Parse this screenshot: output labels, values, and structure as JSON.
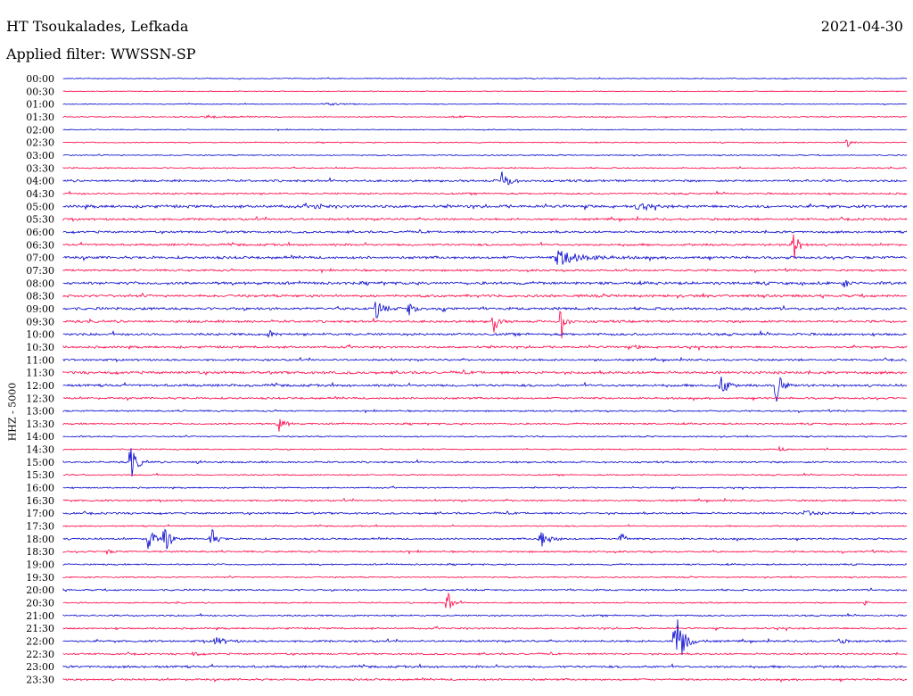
{
  "header": {
    "station": "HT Tsoukalades, Lefkada",
    "date": "2021-04-30",
    "filter": "Applied filter: WWSSN-SP"
  },
  "chart_data": {
    "type": "line",
    "title": "HT Tsoukalades, Lefkada",
    "ylabel": "HHZ - 5000",
    "colors": [
      "#0000cc",
      "#ff0044"
    ],
    "rows": [
      "00:00",
      "00:30",
      "01:00",
      "01:30",
      "02:00",
      "02:30",
      "03:00",
      "03:30",
      "04:00",
      "04:30",
      "05:00",
      "05:30",
      "06:00",
      "06:30",
      "07:00",
      "07:30",
      "08:00",
      "08:30",
      "09:00",
      "09:30",
      "10:00",
      "10:30",
      "11:00",
      "11:30",
      "12:00",
      "12:30",
      "13:00",
      "13:30",
      "14:00",
      "14:30",
      "15:00",
      "15:30",
      "16:00",
      "16:30",
      "17:00",
      "17:30",
      "18:00",
      "18:30",
      "19:00",
      "19:30",
      "20:00",
      "20:30",
      "21:00",
      "21:30",
      "22:00",
      "22:30",
      "23:00",
      "23:30"
    ],
    "noise": [
      0.4,
      0.4,
      0.4,
      0.5,
      0.4,
      0.5,
      0.5,
      0.6,
      1.0,
      0.8,
      1.3,
      1.0,
      1.0,
      1.0,
      1.2,
      0.9,
      1.3,
      1.2,
      1.2,
      1.1,
      1.1,
      1.0,
      0.9,
      1.2,
      1.1,
      0.9,
      0.7,
      0.8,
      0.6,
      0.6,
      0.8,
      0.6,
      0.6,
      0.8,
      0.9,
      0.6,
      0.8,
      0.8,
      0.7,
      0.6,
      0.8,
      0.6,
      0.7,
      0.8,
      0.9,
      0.8,
      1.0,
      0.9
    ],
    "events": [
      {
        "row": 2,
        "x": 0.31,
        "amp": 1.5,
        "dur": 0.02
      },
      {
        "row": 3,
        "x": 0.17,
        "amp": 1.5,
        "dur": 0.02
      },
      {
        "row": 3,
        "x": 0.46,
        "amp": 1.2,
        "dur": 0.02
      },
      {
        "row": 5,
        "x": 0.93,
        "amp": 5,
        "dur": 0.004
      },
      {
        "row": 8,
        "x": 0.52,
        "amp": 16,
        "dur": 0.006
      },
      {
        "row": 10,
        "x": 0.3,
        "amp": 5,
        "dur": 0.004
      },
      {
        "row": 10,
        "x": 0.68,
        "amp": 4,
        "dur": 0.01
      },
      {
        "row": 13,
        "x": 0.865,
        "amp": 22,
        "dur": 0.005
      },
      {
        "row": 14,
        "x": 0.585,
        "amp": 9,
        "dur": 0.025
      },
      {
        "row": 16,
        "x": 0.925,
        "amp": 6,
        "dur": 0.004
      },
      {
        "row": 18,
        "x": 0.37,
        "amp": 14,
        "dur": 0.006
      },
      {
        "row": 18,
        "x": 0.41,
        "amp": 9,
        "dur": 0.005
      },
      {
        "row": 18,
        "x": 0.45,
        "amp": 6,
        "dur": 0.003
      },
      {
        "row": 19,
        "x": 0.51,
        "amp": 16,
        "dur": 0.004
      },
      {
        "row": 19,
        "x": 0.59,
        "amp": 22,
        "dur": 0.004
      },
      {
        "row": 20,
        "x": 0.245,
        "amp": 5,
        "dur": 0.003
      },
      {
        "row": 21,
        "x": 0.68,
        "amp": 3,
        "dur": 0.003
      },
      {
        "row": 24,
        "x": 0.78,
        "amp": 17,
        "dur": 0.005
      },
      {
        "row": 24,
        "x": 0.845,
        "amp": 24,
        "dur": 0.005
      },
      {
        "row": 27,
        "x": 0.255,
        "amp": 10,
        "dur": 0.006
      },
      {
        "row": 29,
        "x": 0.85,
        "amp": 5,
        "dur": 0.003
      },
      {
        "row": 30,
        "x": 0.08,
        "amp": 22,
        "dur": 0.006
      },
      {
        "row": 30,
        "x": 0.16,
        "amp": 5,
        "dur": 0.003
      },
      {
        "row": 34,
        "x": 0.88,
        "amp": 4,
        "dur": 0.008
      },
      {
        "row": 36,
        "x": 0.1,
        "amp": 18,
        "dur": 0.006
      },
      {
        "row": 36,
        "x": 0.12,
        "amp": 18,
        "dur": 0.005
      },
      {
        "row": 36,
        "x": 0.175,
        "amp": 14,
        "dur": 0.005
      },
      {
        "row": 36,
        "x": 0.565,
        "amp": 12,
        "dur": 0.008
      },
      {
        "row": 36,
        "x": 0.66,
        "amp": 12,
        "dur": 0.004
      },
      {
        "row": 37,
        "x": 0.05,
        "amp": 4,
        "dur": 0.004
      },
      {
        "row": 41,
        "x": 0.455,
        "amp": 18,
        "dur": 0.004
      },
      {
        "row": 41,
        "x": 0.95,
        "amp": 3,
        "dur": 0.003
      },
      {
        "row": 44,
        "x": 0.18,
        "amp": 5,
        "dur": 0.01
      },
      {
        "row": 44,
        "x": 0.725,
        "amp": 40,
        "dur": 0.008
      },
      {
        "row": 44,
        "x": 0.92,
        "amp": 4,
        "dur": 0.005
      },
      {
        "row": 45,
        "x": 0.155,
        "amp": 3,
        "dur": 0.004
      }
    ]
  }
}
